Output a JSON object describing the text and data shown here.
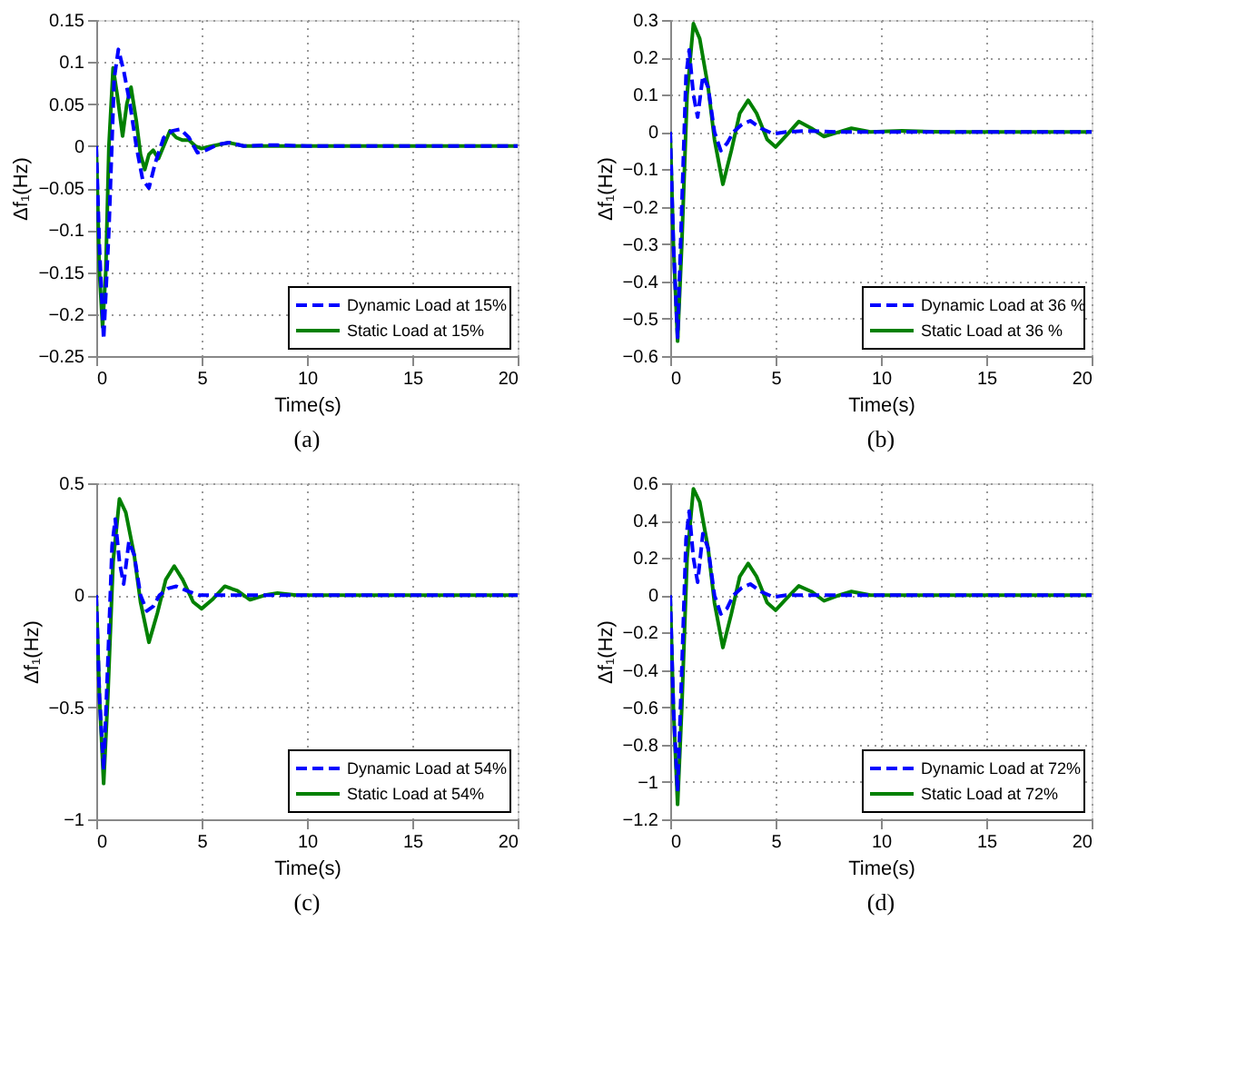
{
  "chart_data": [
    {
      "type": "line",
      "xlabel": "Time(s)",
      "ylabel": "Δf₁(Hz)",
      "annotations": [
        "(a)"
      ],
      "grid": true,
      "legend": "bottom right",
      "marker": "none",
      "xlim": [
        0,
        20
      ],
      "xticks": [
        0,
        5,
        10,
        15,
        20
      ],
      "ylim": [
        -0.25,
        0.15
      ],
      "yticks": [
        {
          "value": -0.25,
          "label": "−0.25"
        },
        {
          "value": -0.2,
          "label": "−0.2"
        },
        {
          "value": -0.15,
          "label": "−0.15"
        },
        {
          "value": -0.1,
          "label": "−0.1"
        },
        {
          "value": -0.05,
          "label": "−0.05"
        },
        0,
        0.05,
        0.1,
        0.15
      ],
      "series": [
        {
          "name": "Dynamic Load at 15%",
          "color": "#0000ff",
          "line_style": "dashed",
          "x": [
            0,
            0.15,
            0.35,
            0.6,
            0.85,
            1.05,
            1.3,
            1.6,
            1.9,
            2.2,
            2.5,
            2.8,
            3.2,
            3.6,
            4.0,
            4.4,
            4.8,
            5.2,
            5.8,
            6.3,
            7,
            8,
            8.6,
            10,
            20
          ],
          "values": [
            0,
            -0.12,
            -0.23,
            -0.1,
            0.08,
            0.115,
            0.09,
            0.05,
            0.0,
            -0.04,
            -0.05,
            -0.02,
            0.01,
            0.018,
            0.02,
            0.01,
            -0.008,
            -0.005,
            0.002,
            0.004,
            0,
            0.001,
            0.001,
            0,
            0
          ]
        },
        {
          "name": "Static Load at 15%",
          "color": "#008000",
          "line_style": "solid",
          "x": [
            0,
            0.15,
            0.3,
            0.45,
            0.6,
            0.8,
            1.0,
            1.25,
            1.45,
            1.65,
            1.9,
            2.1,
            2.3,
            2.5,
            2.7,
            2.95,
            3.2,
            3.5,
            3.8,
            4.1,
            4.4,
            4.7,
            5,
            5.5,
            6.3,
            7,
            8,
            10,
            20
          ],
          "values": [
            0,
            -0.15,
            -0.215,
            -0.15,
            0.0,
            0.093,
            0.06,
            0.012,
            0.05,
            0.07,
            0.03,
            -0.01,
            -0.028,
            -0.01,
            -0.005,
            -0.015,
            0.0,
            0.018,
            0.01,
            0.007,
            0.007,
            0.0,
            -0.003,
            0.0,
            0.004,
            0,
            0,
            0,
            0
          ]
        }
      ]
    },
    {
      "type": "line",
      "xlabel": "Time(s)",
      "ylabel": "Δf₁(Hz)",
      "annotations": [
        "(b)"
      ],
      "grid": true,
      "legend": "bottom right",
      "marker": "none",
      "xlim": [
        0,
        20
      ],
      "xticks": [
        0,
        5,
        10,
        15,
        20
      ],
      "ylim": [
        -0.6,
        0.3
      ],
      "yticks": [
        {
          "value": -0.6,
          "label": "−0.6"
        },
        {
          "value": -0.5,
          "label": "−0.5"
        },
        {
          "value": -0.4,
          "label": "−0.4"
        },
        {
          "value": -0.3,
          "label": "−0.3"
        },
        {
          "value": -0.2,
          "label": "−0.2"
        },
        {
          "value": -0.1,
          "label": "−0.1"
        },
        0,
        0.1,
        0.2,
        0.3
      ],
      "series": [
        {
          "name": "Dynamic Load at 36 %",
          "color": "#0000ff",
          "line_style": "dashed",
          "x": [
            0,
            0.15,
            0.35,
            0.55,
            0.75,
            0.9,
            1.1,
            1.3,
            1.55,
            1.8,
            2.1,
            2.4,
            2.7,
            3.0,
            3.4,
            3.8,
            4.3,
            4.9,
            5.5,
            6.5,
            8,
            10,
            20
          ],
          "values": [
            0,
            -0.3,
            -0.55,
            -0.2,
            0.15,
            0.22,
            0.1,
            0.04,
            0.15,
            0.12,
            0.0,
            -0.05,
            -0.03,
            0.0,
            0.02,
            0.03,
            0.01,
            -0.005,
            0,
            0.003,
            0,
            0,
            0
          ]
        },
        {
          "name": "Static Load at 36 %",
          "color": "#008000",
          "line_style": "solid",
          "x": [
            0,
            0.15,
            0.35,
            0.55,
            0.8,
            1.1,
            1.4,
            1.8,
            2.1,
            2.5,
            2.9,
            3.3,
            3.7,
            4.1,
            4.6,
            5.0,
            5.5,
            6.1,
            6.7,
            7.3,
            8,
            8.6,
            9.5,
            11,
            13,
            20
          ],
          "values": [
            0,
            -0.3,
            -0.56,
            -0.3,
            0.1,
            0.29,
            0.25,
            0.12,
            -0.02,
            -0.14,
            -0.05,
            0.05,
            0.085,
            0.05,
            -0.02,
            -0.04,
            -0.01,
            0.028,
            0.01,
            -0.012,
            0.0,
            0.01,
            0.0,
            0.003,
            0,
            0
          ]
        }
      ]
    },
    {
      "type": "line",
      "xlabel": "Time(s)",
      "ylabel": "Δf₁(Hz)",
      "annotations": [
        "(c)"
      ],
      "grid": true,
      "legend": "bottom right",
      "marker": "none",
      "xlim": [
        0,
        20
      ],
      "xticks": [
        0,
        5,
        10,
        15,
        20
      ],
      "ylim": [
        -1,
        0.5
      ],
      "yticks": [
        {
          "value": -1,
          "label": "−1"
        },
        {
          "value": -0.5,
          "label": "−0.5"
        },
        0,
        0.5
      ],
      "series": [
        {
          "name": "Dynamic Load at 54%",
          "color": "#0000ff",
          "line_style": "dashed",
          "x": [
            0,
            0.15,
            0.35,
            0.55,
            0.75,
            0.9,
            1.1,
            1.3,
            1.55,
            1.8,
            2.1,
            2.4,
            2.7,
            3.0,
            3.4,
            3.8,
            4.3,
            4.9,
            5.5,
            6.5,
            8,
            10,
            20
          ],
          "values": [
            0,
            -0.45,
            -0.78,
            -0.3,
            0.22,
            0.34,
            0.15,
            0.05,
            0.24,
            0.18,
            0.0,
            -0.07,
            -0.05,
            0.0,
            0.03,
            0.04,
            0.02,
            0,
            0,
            0,
            0,
            0,
            0
          ]
        },
        {
          "name": "Static Load at 54%",
          "color": "#008000",
          "line_style": "solid",
          "x": [
            0,
            0.15,
            0.35,
            0.55,
            0.8,
            1.1,
            1.4,
            1.8,
            2.1,
            2.5,
            2.9,
            3.3,
            3.7,
            4.1,
            4.6,
            5.0,
            5.5,
            6.1,
            6.7,
            7.3,
            8,
            8.6,
            9.5,
            11,
            13,
            20
          ],
          "values": [
            0,
            -0.45,
            -0.84,
            -0.45,
            0.15,
            0.43,
            0.37,
            0.18,
            -0.03,
            -0.21,
            -0.08,
            0.07,
            0.13,
            0.07,
            -0.03,
            -0.06,
            -0.02,
            0.04,
            0.02,
            -0.02,
            0,
            0.01,
            0,
            0,
            0,
            0
          ]
        }
      ]
    },
    {
      "type": "line",
      "xlabel": "Time(s)",
      "ylabel": "Δf₁(Hz)",
      "annotations": [
        "(d)"
      ],
      "grid": true,
      "legend": "bottom right",
      "marker": "none",
      "xlim": [
        0,
        20
      ],
      "xticks": [
        0,
        5,
        10,
        15,
        20
      ],
      "ylim": [
        -1.2,
        0.6
      ],
      "yticks": [
        {
          "value": -1.2,
          "label": "−1.2"
        },
        {
          "value": -1,
          "label": "−1"
        },
        {
          "value": -0.8,
          "label": "−0.8"
        },
        {
          "value": -0.6,
          "label": "−0.6"
        },
        {
          "value": -0.4,
          "label": "−0.4"
        },
        {
          "value": -0.2,
          "label": "−0.2"
        },
        0,
        0.2,
        0.4,
        0.6
      ],
      "series": [
        {
          "name": "Dynamic Load at 72%",
          "color": "#0000ff",
          "line_style": "dashed",
          "x": [
            0,
            0.15,
            0.35,
            0.55,
            0.75,
            0.9,
            1.1,
            1.3,
            1.55,
            1.8,
            2.1,
            2.4,
            2.7,
            3.0,
            3.4,
            3.8,
            4.3,
            4.9,
            5.5,
            6.5,
            8,
            10,
            20
          ],
          "values": [
            0,
            -0.6,
            -1.05,
            -0.4,
            0.3,
            0.45,
            0.2,
            0.07,
            0.33,
            0.25,
            0,
            -0.1,
            -0.07,
            0,
            0.04,
            0.06,
            0.02,
            -0.01,
            0,
            0,
            0,
            0,
            0
          ]
        },
        {
          "name": "Static Load at 72%",
          "color": "#008000",
          "line_style": "solid",
          "x": [
            0,
            0.15,
            0.35,
            0.55,
            0.8,
            1.1,
            1.4,
            1.8,
            2.1,
            2.5,
            2.9,
            3.3,
            3.7,
            4.1,
            4.6,
            5.0,
            5.5,
            6.1,
            6.7,
            7.3,
            8,
            8.6,
            9.5,
            11,
            13,
            20
          ],
          "values": [
            0,
            -0.6,
            -1.12,
            -0.6,
            0.2,
            0.57,
            0.5,
            0.25,
            -0.04,
            -0.28,
            -0.1,
            0.1,
            0.17,
            0.1,
            -0.04,
            -0.08,
            -0.02,
            0.05,
            0.02,
            -0.03,
            0,
            0.02,
            0,
            0,
            0,
            0
          ]
        }
      ]
    }
  ]
}
